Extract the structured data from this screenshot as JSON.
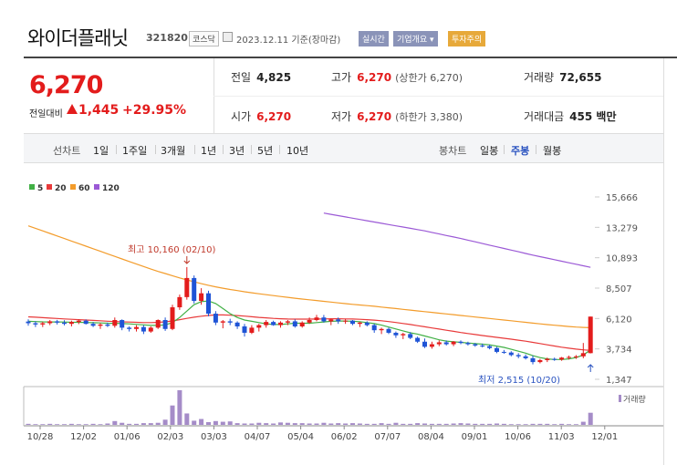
{
  "header": {
    "company": "와이더플래닛",
    "code": "321820",
    "market": "코스닥",
    "date_text": "2023.12.11 기준(장마감)",
    "badges": [
      "실시간",
      "기업개요 ▾",
      "투자주의"
    ]
  },
  "quote": {
    "price": "6,270",
    "change_label": "전일대비",
    "change": "1,445",
    "change_rate": "+29.95%",
    "prev_close_label": "전일",
    "prev_close": "4,825",
    "open_label": "시가",
    "open": "6,270",
    "high_label": "고가",
    "high": "6,270",
    "high_sub": "(상한가 6,270)",
    "low_label": "저가",
    "low": "6,270",
    "low_sub": "(하한가 3,380)",
    "volume_label": "거래량",
    "volume": "72,655",
    "amount_label": "거래대금",
    "amount": "455 백만"
  },
  "tabs": {
    "line_label": "선차트",
    "line_tabs": [
      "1일",
      "1주일",
      "3개월",
      "1년",
      "3년",
      "5년",
      "10년"
    ],
    "candle_label": "봉차트",
    "candle_tabs": [
      "일봉",
      "주봉",
      "월봉"
    ],
    "active_candle": "주봉"
  },
  "colors": {
    "up": "#e31c1c",
    "down": "#1f54d6",
    "ma5": "#41b045",
    "ma20": "#e83a3a",
    "ma60": "#f39c2b",
    "ma120": "#9b59d6"
  },
  "chart_data": {
    "type": "candlestick",
    "legend": [
      "5",
      "20",
      "60",
      "120"
    ],
    "volume_label": "거래량",
    "y_ticks": [
      15666,
      13279,
      10893,
      8507,
      6120,
      3734,
      1347
    ],
    "ylim": [
      1347,
      15666
    ],
    "x_ticks": [
      "10/28",
      "12/02",
      "01/06",
      "02/03",
      "03/03",
      "04/07",
      "05/04",
      "06/02",
      "07/07",
      "08/04",
      "09/01",
      "10/06",
      "11/03",
      "12/01"
    ],
    "annotations": [
      {
        "text": "최고 10,160 (02/10)",
        "value": 10160,
        "index": 22
      },
      {
        "text": "최저 2,515 (10/20)",
        "value": 2515,
        "index": 78
      }
    ],
    "candles": [
      [
        5880,
        6050,
        5550,
        5750
      ],
      [
        5750,
        5900,
        5450,
        5650
      ],
      [
        5650,
        5860,
        5450,
        5750
      ],
      [
        5750,
        6000,
        5600,
        5900
      ],
      [
        5900,
        6010,
        5650,
        5800
      ],
      [
        5800,
        5980,
        5580,
        5700
      ],
      [
        5700,
        5950,
        5500,
        5850
      ],
      [
        5850,
        6050,
        5680,
        5950
      ],
      [
        5950,
        6050,
        5650,
        5700
      ],
      [
        5700,
        5850,
        5450,
        5550
      ],
      [
        5550,
        5760,
        5300,
        5650
      ],
      [
        5650,
        5800,
        5450,
        5550
      ],
      [
        5550,
        6200,
        5400,
        6000
      ],
      [
        6000,
        6050,
        5200,
        5400
      ],
      [
        5400,
        5500,
        5100,
        5300
      ],
      [
        5300,
        5600,
        5100,
        5450
      ],
      [
        5450,
        5600,
        4900,
        5100
      ],
      [
        5100,
        5500,
        5000,
        5400
      ],
      [
        5400,
        6050,
        5300,
        6000
      ],
      [
        6000,
        6200,
        5150,
        5300
      ],
      [
        5300,
        7200,
        5200,
        7000
      ],
      [
        7000,
        8000,
        6800,
        7800
      ],
      [
        7800,
        10160,
        7600,
        9300
      ],
      [
        9300,
        9500,
        7300,
        7500
      ],
      [
        7500,
        8500,
        7200,
        8100
      ],
      [
        8100,
        8300,
        6300,
        6500
      ],
      [
        6500,
        6700,
        5600,
        5800
      ],
      [
        5800,
        6000,
        5350,
        5900
      ],
      [
        5900,
        6100,
        5600,
        5800
      ],
      [
        5800,
        5900,
        5300,
        5500
      ],
      [
        5500,
        5700,
        4700,
        5000
      ],
      [
        5000,
        5600,
        4900,
        5400
      ],
      [
        5400,
        5700,
        5100,
        5600
      ],
      [
        5600,
        6000,
        5400,
        5850
      ],
      [
        5850,
        5950,
        5550,
        5600
      ],
      [
        5600,
        5900,
        5400,
        5800
      ],
      [
        5800,
        6000,
        5600,
        5900
      ],
      [
        5900,
        6050,
        5400,
        5500
      ],
      [
        5500,
        5900,
        5400,
        5800
      ],
      [
        5800,
        6200,
        5700,
        6000
      ],
      [
        6000,
        6400,
        5900,
        6200
      ],
      [
        6200,
        6400,
        5800,
        5900
      ],
      [
        5900,
        6100,
        5600,
        6050
      ],
      [
        6050,
        6200,
        5700,
        5900
      ],
      [
        5900,
        6100,
        5700,
        5950
      ],
      [
        5950,
        6000,
        5600,
        5700
      ],
      [
        5700,
        5850,
        5450,
        5800
      ],
      [
        5800,
        5900,
        5500,
        5600
      ],
      [
        5600,
        5700,
        5000,
        5200
      ],
      [
        5200,
        5400,
        4900,
        5300
      ],
      [
        5300,
        5400,
        4900,
        5000
      ],
      [
        5000,
        5100,
        4600,
        4800
      ],
      [
        4800,
        5000,
        4500,
        4900
      ],
      [
        4900,
        5050,
        4500,
        4600
      ],
      [
        4600,
        4700,
        4200,
        4300
      ],
      [
        4300,
        4550,
        3800,
        3900
      ],
      [
        3900,
        4300,
        3750,
        4100
      ],
      [
        4100,
        4400,
        3950,
        4250
      ],
      [
        4250,
        4400,
        4000,
        4100
      ],
      [
        4100,
        4350,
        3950,
        4300
      ],
      [
        4300,
        4400,
        4100,
        4200
      ],
      [
        4200,
        4300,
        4000,
        4100
      ],
      [
        4100,
        4200,
        3900,
        4000
      ],
      [
        4000,
        4150,
        3850,
        3950
      ],
      [
        3950,
        4050,
        3700,
        3800
      ],
      [
        3800,
        3900,
        3400,
        3500
      ],
      [
        3500,
        3650,
        3350,
        3450
      ],
      [
        3450,
        3550,
        3150,
        3250
      ],
      [
        3250,
        3400,
        3000,
        3150
      ],
      [
        3150,
        3300,
        2900,
        3000
      ],
      [
        3000,
        3200,
        2515,
        2700
      ],
      [
        2700,
        2950,
        2600,
        2850
      ],
      [
        2850,
        3050,
        2700,
        2950
      ],
      [
        2950,
        3050,
        2800,
        2900
      ],
      [
        2900,
        3100,
        2800,
        3050
      ],
      [
        3050,
        3200,
        2900,
        3100
      ],
      [
        3100,
        3250,
        2950,
        3150
      ],
      [
        3150,
        4200,
        3000,
        3400
      ],
      [
        3400,
        6270,
        3380,
        6270
      ]
    ],
    "volumes": [
      3,
      2,
      2,
      3,
      2,
      2,
      3,
      2,
      2,
      3,
      2,
      4,
      11,
      6,
      3,
      3,
      5,
      5,
      6,
      15,
      56,
      100,
      33,
      12,
      17,
      8,
      11,
      9,
      10,
      5,
      4,
      4,
      6,
      5,
      4,
      7,
      6,
      5,
      5,
      4,
      4,
      6,
      4,
      5,
      4,
      5,
      4,
      3,
      3,
      5,
      3,
      6,
      3,
      3,
      5,
      4,
      3,
      3,
      3,
      4,
      5,
      4,
      3,
      3,
      3,
      4,
      3,
      2,
      2,
      2,
      3,
      3,
      3,
      2,
      3,
      2,
      2,
      9,
      35
    ],
    "ma5": [
      5900,
      5880,
      5860,
      5850,
      5850,
      5840,
      5820,
      5820,
      5810,
      5790,
      5770,
      5750,
      5740,
      5720,
      5700,
      5660,
      5620,
      5580,
      5580,
      5620,
      5800,
      6200,
      6700,
      7200,
      7450,
      7500,
      7300,
      6900,
      6500,
      6200,
      6000,
      5900,
      5800,
      5700,
      5650,
      5650,
      5700,
      5750,
      5750,
      5750,
      5800,
      5850,
      5900,
      5920,
      5920,
      5900,
      5870,
      5800,
      5720,
      5600,
      5450,
      5300,
      5150,
      5000,
      4900,
      4750,
      4600,
      4450,
      4350,
      4300,
      4250,
      4200,
      4150,
      4100,
      4050,
      3950,
      3850,
      3700,
      3550,
      3400,
      3200,
      3050,
      2950,
      2900,
      2900,
      2950,
      3050,
      3250,
      3650
    ],
    "ma20": [
      6250,
      6220,
      6190,
      6150,
      6120,
      6090,
      6060,
      6030,
      6000,
      5970,
      5940,
      5910,
      5880,
      5860,
      5840,
      5820,
      5800,
      5800,
      5820,
      5860,
      5930,
      6030,
      6130,
      6220,
      6300,
      6360,
      6400,
      6400,
      6380,
      6350,
      6310,
      6260,
      6210,
      6170,
      6130,
      6100,
      6080,
      6070,
      6070,
      6070,
      6080,
      6090,
      6100,
      6100,
      6090,
      6080,
      6060,
      6030,
      5990,
      5940,
      5880,
      5810,
      5730,
      5650,
      5560,
      5470,
      5380,
      5290,
      5200,
      5110,
      5020,
      4940,
      4860,
      4780,
      4710,
      4640,
      4570,
      4500,
      4420,
      4340,
      4250,
      4150,
      4050,
      3960,
      3870,
      3790,
      3720,
      3660,
      3620
    ],
    "ma60": [
      13400,
      13200,
      13000,
      12800,
      12600,
      12400,
      12200,
      12000,
      11800,
      11600,
      11400,
      11200,
      11000,
      10800,
      10600,
      10400,
      10200,
      10000,
      9820,
      9650,
      9480,
      9310,
      9150,
      9000,
      8860,
      8730,
      8610,
      8500,
      8400,
      8310,
      8220,
      8140,
      8060,
      7990,
      7920,
      7850,
      7780,
      7710,
      7650,
      7590,
      7530,
      7470,
      7410,
      7350,
      7290,
      7230,
      7180,
      7130,
      7080,
      7020,
      6960,
      6900,
      6840,
      6780,
      6720,
      6660,
      6600,
      6540,
      6480,
      6420,
      6360,
      6300,
      6240,
      6180,
      6120,
      6060,
      6000,
      5940,
      5880,
      5820,
      5760,
      5700,
      5640,
      5590,
      5540,
      5490,
      5450,
      5420,
      5400
    ],
    "ma120_start": 41,
    "ma120": [
      14400,
      14300,
      14200,
      14100,
      14000,
      13900,
      13800,
      13700,
      13600,
      13500,
      13400,
      13300,
      13200,
      13100,
      13000,
      12880,
      12760,
      12640,
      12520,
      12400,
      12270,
      12140,
      12010,
      11880,
      11750,
      11620,
      11490,
      11360,
      11230,
      11100,
      10980,
      10860,
      10740,
      10620,
      10500,
      10380,
      10260,
      10140
    ]
  }
}
